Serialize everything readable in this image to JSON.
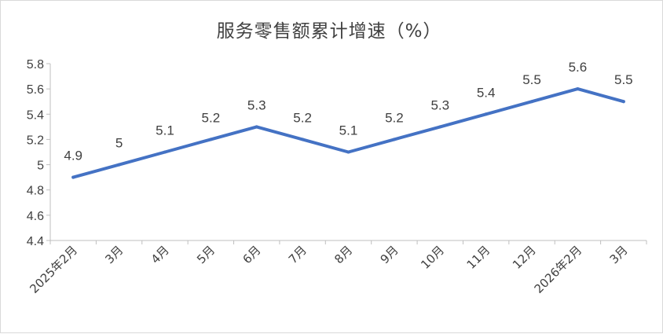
{
  "chart_data": {
    "type": "line",
    "title": "服务零售额累计增速（%）",
    "categories": [
      "2025年2月",
      "3月",
      "4月",
      "5月",
      "6月",
      "7月",
      "8月",
      "9月",
      "10月",
      "11月",
      "12月",
      "2026年2月",
      "3月"
    ],
    "series": [
      {
        "values": [
          4.9,
          5.0,
          5.1,
          5.2,
          5.3,
          5.2,
          5.1,
          5.2,
          5.3,
          5.4,
          5.5,
          5.6,
          5.5
        ]
      }
    ],
    "data_labels": [
      "4.9",
      "5",
      "5.1",
      "5.2",
      "5.3",
      "5.2",
      "5.1",
      "5.2",
      "5.3",
      "5.4",
      "5.5",
      "5.6",
      "5.5"
    ],
    "y_ticks": [
      "4.4",
      "4.6",
      "4.8",
      "5",
      "5.2",
      "5.4",
      "5.6",
      "5.8"
    ],
    "ylim": [
      4.4,
      5.8
    ],
    "xlabel": "",
    "ylabel": "",
    "grid": false,
    "legend": "none",
    "line_color": "#4472C4"
  }
}
